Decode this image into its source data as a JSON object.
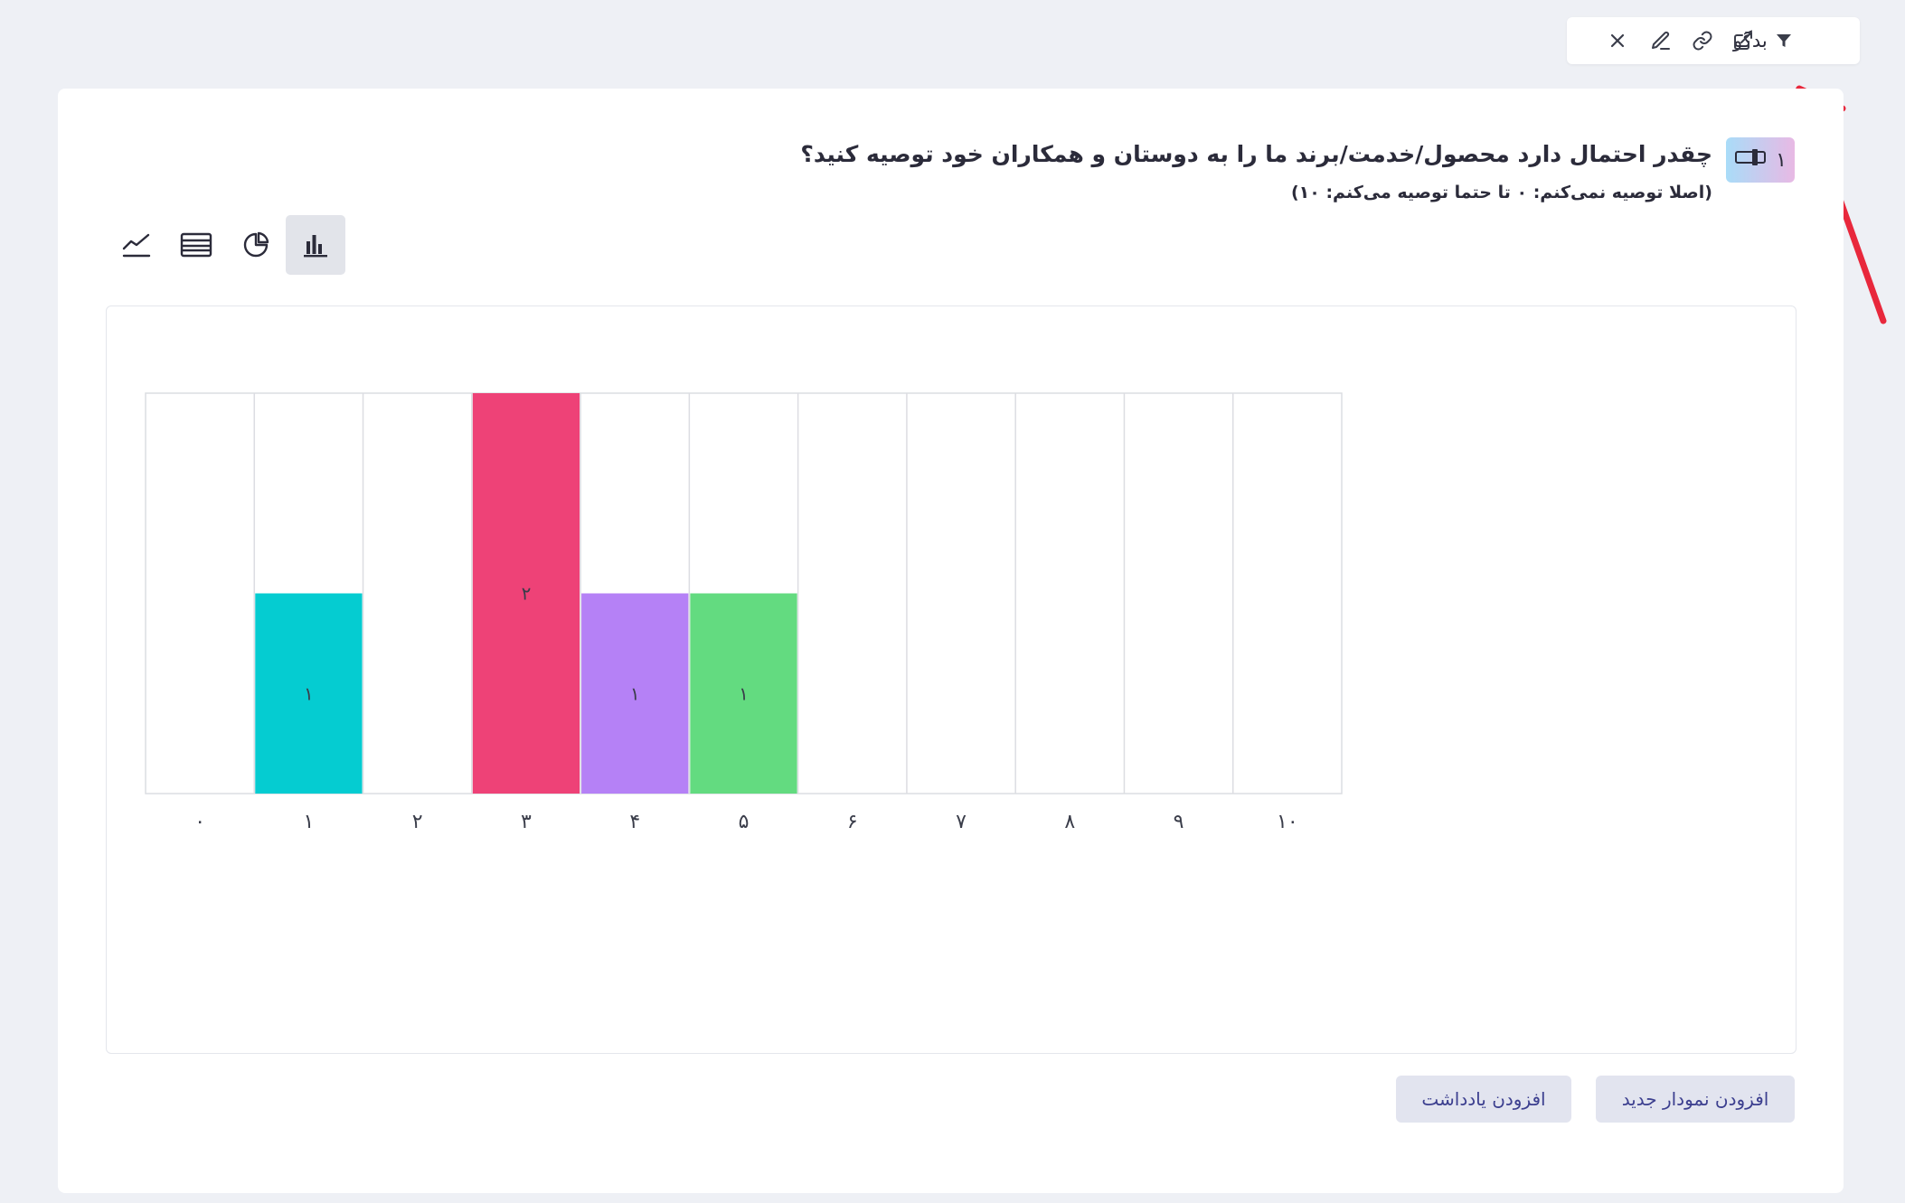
{
  "toolbar": {
    "filter_label": "بدگو",
    "icons": [
      "filter-icon",
      "external-link-icon",
      "link-icon",
      "edit-icon",
      "close-icon"
    ]
  },
  "question": {
    "number": "۱",
    "title": "چقدر احتمال دارد محصول/خدمت/برند ما را به دوستان و همکاران خود توصیه کنید؟",
    "subtitle": "(اصلا توصیه نمی‌کنم: ۰ تا حتما توصیه می‌کنم: ۱۰)"
  },
  "chart_types": [
    {
      "name": "line-chart-icon",
      "active": false
    },
    {
      "name": "table-icon",
      "active": false
    },
    {
      "name": "pie-chart-icon",
      "active": false
    },
    {
      "name": "bar-chart-icon",
      "active": true
    }
  ],
  "chart_data": {
    "type": "bar",
    "categories": [
      "۰",
      "۱",
      "۲",
      "۳",
      "۴",
      "۵",
      "۶",
      "۷",
      "۸",
      "۹",
      "۱۰"
    ],
    "values": [
      0,
      1,
      0,
      2,
      1,
      1,
      0,
      0,
      0,
      0,
      0
    ],
    "value_labels": [
      "",
      "۱",
      "",
      "۲",
      "۱",
      "۱",
      "",
      "",
      "",
      "",
      ""
    ],
    "colors": [
      "#ffffff",
      "#05ccd1",
      "#ffffff",
      "#ee4277",
      "#b581f6",
      "#63db80",
      "#ffffff",
      "#ffffff",
      "#ffffff",
      "#ffffff",
      "#ffffff"
    ],
    "ylim": [
      0,
      2
    ],
    "grid": true,
    "title": "",
    "xlabel": "",
    "ylabel": ""
  },
  "buttons": {
    "add_chart": "افزودن نمودار جدید",
    "add_note": "افزودن یادداشت"
  },
  "annotation": {
    "color": "#e8283c"
  }
}
